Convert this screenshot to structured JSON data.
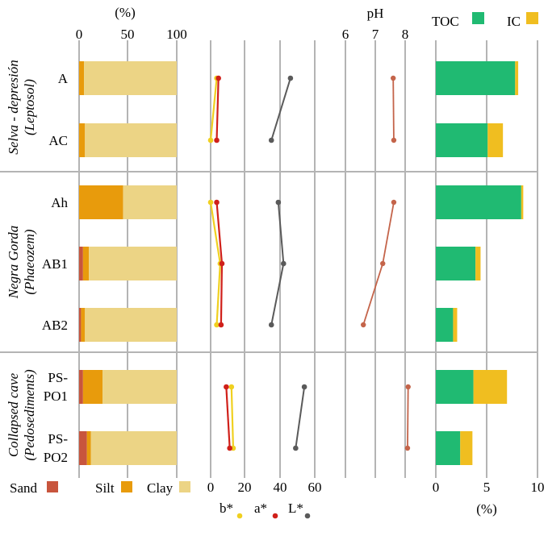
{
  "chart_data": {
    "type": "bar",
    "samples": [
      {
        "group": "selva",
        "label": "A",
        "label2": ""
      },
      {
        "group": "selva",
        "label": "AC",
        "label2": ""
      },
      {
        "group": "negra",
        "label": "Ah",
        "label2": ""
      },
      {
        "group": "negra",
        "label": "AB1",
        "label2": ""
      },
      {
        "group": "negra",
        "label": "AB2",
        "label2": ""
      },
      {
        "group": "cave",
        "label": "PS-",
        "label2": "PO1"
      },
      {
        "group": "cave",
        "label": "PS-",
        "label2": "PO2"
      }
    ],
    "groups": [
      {
        "id": "selva",
        "line1": "Selva - depresión",
        "line2": "(Leptosol)"
      },
      {
        "id": "negra",
        "line1": "Negra Gorda",
        "line2": "(Phaeozem)"
      },
      {
        "id": "cave",
        "line1": "Collapsed cave",
        "line2": "(Pedosediments)"
      }
    ],
    "texture": {
      "axis_unit": "(%)",
      "xlim": [
        0,
        100
      ],
      "ticks": [
        "0",
        "50",
        "100"
      ],
      "legend": [
        "Sand",
        "Silt",
        "Clay"
      ],
      "colors": {
        "sand": "#c8553d",
        "silt": "#e89b0c",
        "clay": "#ecd485"
      },
      "series": [
        {
          "name": "Sand",
          "values": [
            0,
            0,
            0,
            4,
            2,
            4,
            8
          ]
        },
        {
          "name": "Silt",
          "values": [
            5,
            6,
            45,
            6,
            4,
            20,
            4
          ]
        },
        {
          "name": "Clay",
          "values": [
            95,
            94,
            55,
            90,
            94,
            76,
            88
          ]
        }
      ]
    },
    "color": {
      "xlim": [
        0,
        60
      ],
      "ticks": [
        "0",
        "20",
        "40",
        "60"
      ],
      "legend": [
        "b*",
        "a*",
        "L*"
      ],
      "colors": {
        "b": "#f0d020",
        "a": "#d0201a",
        "L": "#5a5a5a"
      },
      "b": [
        3.5,
        0,
        0,
        5.5,
        3.5,
        12,
        13
      ],
      "a": [
        4.5,
        3.5,
        3.5,
        6.5,
        6,
        9,
        11
      ],
      "L": [
        46,
        35,
        39,
        42,
        35,
        54,
        49
      ]
    },
    "ph": {
      "title": "pH",
      "xlim": [
        6,
        8
      ],
      "ticks": [
        "6",
        "7",
        "8"
      ],
      "color": "#c4644a",
      "values": [
        7.6,
        7.62,
        7.62,
        7.25,
        6.6,
        8.1,
        8.08
      ]
    },
    "carbon": {
      "axis_unit": "(%)",
      "xlim": [
        0,
        10
      ],
      "ticks": [
        "0",
        "5",
        "10"
      ],
      "legend": [
        "TOC",
        "IC"
      ],
      "colors": {
        "toc": "#20ba72",
        "ic": "#f0be20"
      },
      "series": [
        {
          "name": "TOC",
          "values": [
            7.8,
            5.1,
            8.4,
            3.9,
            1.7,
            3.7,
            2.4
          ]
        },
        {
          "name": "IC",
          "values": [
            0.3,
            1.5,
            0.2,
            0.5,
            0.4,
            3.3,
            1.2
          ]
        }
      ]
    }
  }
}
